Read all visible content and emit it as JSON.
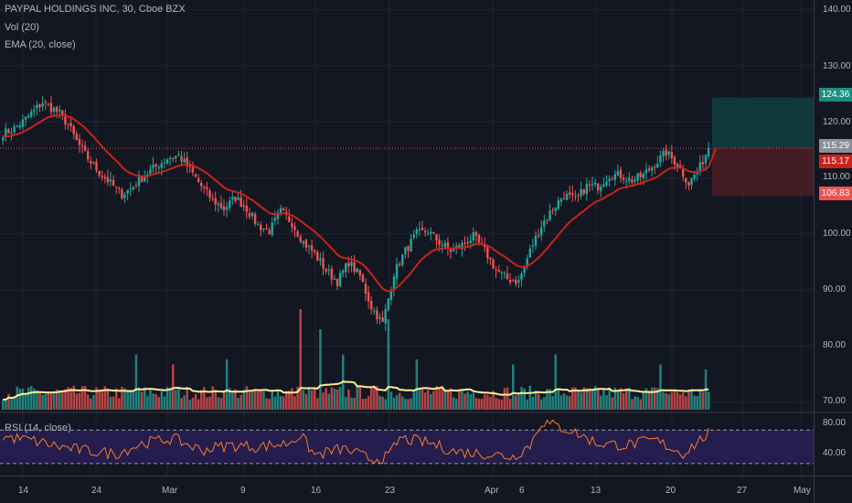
{
  "header": {
    "symbol_line": "PAYPAL HOLDINGS INC, 30, Cboe BZX",
    "vol_label": "Vol (20)",
    "ema_label": "EMA (20, close)",
    "rsi_label": "RSI (14, close)"
  },
  "price_axis": {
    "ticks": [
      "140.00",
      "130.00",
      "120.00",
      "110.00",
      "100.00",
      "90.00",
      "80.00",
      "70.00"
    ]
  },
  "rsi_axis": {
    "ticks": [
      "80.00",
      "40.00"
    ]
  },
  "time_axis": {
    "labels": [
      "14",
      "24",
      "Mar",
      "9",
      "16",
      "23",
      "Apr",
      "6",
      "13",
      "20",
      "27",
      "May"
    ]
  },
  "price_tags": {
    "target": "124.36",
    "last": "115.29",
    "ema": "115.17",
    "stop": "106.83"
  },
  "colors": {
    "background": "#131722",
    "up": "#26a69a",
    "down": "#ef5350",
    "ema_line": "#c8231c",
    "vol_ma": "#ffeb9c",
    "rsi_line": "#f57c2a",
    "rsi_band": "#2a1f5a",
    "target_zone": "#0f3d3d",
    "stop_zone": "#4a1e25",
    "last_price_line": "#e5514b"
  },
  "chart_data": {
    "type": "candlestick",
    "symbol": "PAYPAL HOLDINGS INC",
    "interval": "30",
    "exchange": "Cboe BZX",
    "ylim": [
      68,
      142
    ],
    "price_anchors": [
      [
        0,
        118
      ],
      [
        3,
        118.5
      ],
      [
        7,
        120
      ],
      [
        11,
        122
      ],
      [
        14,
        123.5
      ],
      [
        17,
        122.5
      ],
      [
        20,
        121.5
      ],
      [
        23,
        119.5
      ],
      [
        26,
        116.5
      ],
      [
        30,
        113.5
      ],
      [
        34,
        111
      ],
      [
        38,
        109
      ],
      [
        42,
        107
      ],
      [
        46,
        108.5
      ],
      [
        50,
        110.5
      ],
      [
        54,
        112
      ],
      [
        58,
        113.5
      ],
      [
        62,
        114
      ],
      [
        66,
        111.5
      ],
      [
        70,
        108.5
      ],
      [
        74,
        106
      ],
      [
        78,
        104.5
      ],
      [
        82,
        106.5
      ],
      [
        86,
        104.5
      ],
      [
        90,
        101.5
      ],
      [
        94,
        100.5
      ],
      [
        98,
        104
      ],
      [
        102,
        102
      ],
      [
        106,
        98.5
      ],
      [
        110,
        96.5
      ],
      [
        114,
        93.5
      ],
      [
        118,
        91.5
      ],
      [
        122,
        95
      ],
      [
        126,
        92.5
      ],
      [
        130,
        87
      ],
      [
        134,
        84
      ],
      [
        138,
        93
      ],
      [
        142,
        97
      ],
      [
        146,
        100
      ],
      [
        150,
        100.5
      ],
      [
        154,
        98.5
      ],
      [
        158,
        97
      ],
      [
        162,
        98
      ],
      [
        166,
        99.5
      ],
      [
        170,
        97
      ],
      [
        174,
        93.5
      ],
      [
        178,
        92
      ],
      [
        182,
        91.5
      ],
      [
        186,
        97
      ],
      [
        190,
        101.5
      ],
      [
        194,
        104.5
      ],
      [
        198,
        107
      ],
      [
        202,
        106
      ],
      [
        206,
        108.5
      ],
      [
        210,
        108.5
      ],
      [
        214,
        110.5
      ],
      [
        218,
        110.5
      ],
      [
        222,
        109.5
      ],
      [
        226,
        110.5
      ],
      [
        230,
        112.5
      ],
      [
        234,
        114.5
      ],
      [
        238,
        112.5
      ],
      [
        242,
        109
      ],
      [
        246,
        112
      ],
      [
        249,
        115.3
      ]
    ],
    "ema_period": 20,
    "last_price": 115.29,
    "ema_last": 115.17,
    "position": {
      "target": 124.36,
      "entry": 115.29,
      "stop": 106.83
    },
    "volume_spikes": [
      [
        47,
        0.55
      ],
      [
        60,
        0.45
      ],
      [
        79,
        0.5
      ],
      [
        105,
        1.0
      ],
      [
        112,
        0.8
      ],
      [
        120,
        0.55
      ],
      [
        136,
        0.9
      ],
      [
        146,
        0.5
      ],
      [
        180,
        0.45
      ],
      [
        195,
        0.55
      ],
      [
        232,
        0.45
      ],
      [
        248,
        0.4
      ]
    ],
    "rsi_range": [
      20,
      90
    ],
    "rsi_levels": [
      70,
      30
    ],
    "rsi_anchors": [
      [
        0,
        62
      ],
      [
        10,
        58
      ],
      [
        20,
        50
      ],
      [
        30,
        45
      ],
      [
        40,
        42
      ],
      [
        50,
        55
      ],
      [
        60,
        60
      ],
      [
        70,
        46
      ],
      [
        80,
        52
      ],
      [
        90,
        50
      ],
      [
        100,
        54
      ],
      [
        105,
        64
      ],
      [
        110,
        40
      ],
      [
        120,
        48
      ],
      [
        130,
        35
      ],
      [
        136,
        38
      ],
      [
        140,
        60
      ],
      [
        150,
        55
      ],
      [
        160,
        44
      ],
      [
        170,
        42
      ],
      [
        180,
        38
      ],
      [
        186,
        52
      ],
      [
        190,
        80
      ],
      [
        200,
        70
      ],
      [
        210,
        54
      ],
      [
        220,
        52
      ],
      [
        230,
        58
      ],
      [
        240,
        42
      ],
      [
        249,
        66
      ]
    ]
  }
}
